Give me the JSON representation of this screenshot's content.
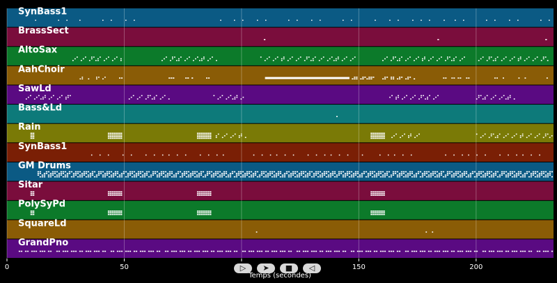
{
  "chart_data": {
    "type": "piano-roll",
    "xlabel": "Temps (secondes)",
    "xlim": [
      0,
      233
    ],
    "x_ticks": [
      0,
      50,
      100,
      150,
      200
    ],
    "grid": true,
    "tracks": [
      {
        "name": "SynBass1",
        "color": "#0b5a84",
        "notes": [
          [
            12,
            30,
            1,
            0.15
          ],
          [
            30,
            60,
            1,
            0.15
          ],
          [
            82,
            95,
            1,
            0.15
          ],
          [
            95,
            150,
            1,
            0.12
          ],
          [
            155,
            190,
            1,
            0.15
          ],
          [
            190,
            233,
            1,
            0.15
          ]
        ]
      },
      {
        "name": "BrassSect",
        "color": "#7a0d3c",
        "notes": [
          [
            109.5,
            110.5,
            1,
            0.6
          ],
          [
            183.5,
            184.5,
            1,
            0.6
          ],
          [
            229.5,
            230.5,
            1,
            0.6
          ]
        ]
      },
      {
        "name": "AltoSax",
        "color": "#0c7a2a",
        "notes": [
          [
            27,
            50,
            3,
            0.3
          ],
          [
            65,
            90,
            3,
            0.3
          ],
          [
            108,
            150,
            3,
            0.3
          ],
          [
            160,
            197,
            3,
            0.3
          ],
          [
            200,
            232,
            3,
            0.3
          ]
        ]
      },
      {
        "name": "AahChoir",
        "color": "#8a5c06",
        "notes": [
          [
            31,
            36,
            2,
            0.3
          ],
          [
            38,
            44,
            2,
            0.3
          ],
          [
            46,
            51,
            1,
            0.5
          ],
          [
            68,
            73,
            1,
            0.6
          ],
          [
            76,
            80,
            1,
            0.6
          ],
          [
            84,
            88,
            1,
            0.5
          ],
          [
            110,
            146,
            1,
            0.9
          ],
          [
            147,
            157,
            2,
            0.6
          ],
          [
            160,
            175,
            2,
            0.5
          ],
          [
            185,
            198,
            1,
            0.5
          ],
          [
            206,
            214,
            1,
            0.4
          ],
          [
            218,
            224,
            1,
            0.4
          ],
          [
            230,
            233,
            1,
            0.4
          ]
        ]
      },
      {
        "name": "SawLd",
        "color": "#5a0a82",
        "notes": [
          [
            8,
            28,
            3,
            0.3
          ],
          [
            51,
            70,
            3,
            0.3
          ],
          [
            88,
            102,
            3,
            0.3
          ],
          [
            163,
            185,
            3,
            0.3
          ],
          [
            200,
            217,
            3,
            0.3
          ]
        ]
      },
      {
        "name": "Bass&Ld",
        "color": "#0d7a7a",
        "notes": [
          [
            139.5,
            142,
            1,
            0.4
          ]
        ]
      },
      {
        "name": "Rain",
        "color": "#7a7a06",
        "notes": [
          [
            10,
            12,
            4,
            0.8
          ],
          [
            43,
            50,
            4,
            0.8
          ],
          [
            81,
            88,
            4,
            0.8
          ],
          [
            89,
            103,
            3,
            0.3
          ],
          [
            155,
            162,
            4,
            0.8
          ],
          [
            163,
            178,
            3,
            0.3
          ],
          [
            200,
            233,
            3,
            0.3
          ]
        ]
      },
      {
        "name": "SynBass1",
        "color": "#7a1f05",
        "notes": [
          [
            35,
            95,
            1,
            0.2
          ],
          [
            105,
            155,
            1,
            0.2
          ],
          [
            157,
            178,
            1,
            0.2
          ],
          [
            185,
            233,
            1,
            0.2
          ]
        ]
      },
      {
        "name": "GM Drums",
        "color": "#0b5a84",
        "notes": [
          [
            13,
            233,
            4,
            0.6
          ]
        ]
      },
      {
        "name": "Sitar",
        "color": "#7a0d3c",
        "notes": [
          [
            10,
            12,
            3,
            0.8
          ],
          [
            43,
            50,
            3,
            0.8
          ],
          [
            81,
            88,
            3,
            0.8
          ],
          [
            155,
            162,
            3,
            0.8
          ]
        ]
      },
      {
        "name": "PolySyPd",
        "color": "#0c7a2a",
        "notes": [
          [
            10,
            12,
            3,
            0.8
          ],
          [
            43,
            50,
            3,
            0.8
          ],
          [
            81,
            88,
            3,
            0.8
          ],
          [
            155,
            162,
            3,
            0.8
          ]
        ]
      },
      {
        "name": "SquareLd",
        "color": "#8a5c06",
        "notes": [
          [
            103.5,
            109,
            1,
            0.3
          ],
          [
            178.5,
            184,
            1,
            0.3
          ]
        ]
      },
      {
        "name": "GrandPno",
        "color": "#5a0a82",
        "notes": [
          [
            5,
            233,
            1,
            0.6
          ]
        ]
      }
    ]
  },
  "controls": [
    {
      "icon": "play-icon",
      "glyph": "▷"
    },
    {
      "icon": "forward-icon",
      "glyph": "➤"
    },
    {
      "icon": "stop-icon",
      "glyph": "■"
    },
    {
      "icon": "back-icon",
      "glyph": "◁"
    }
  ]
}
